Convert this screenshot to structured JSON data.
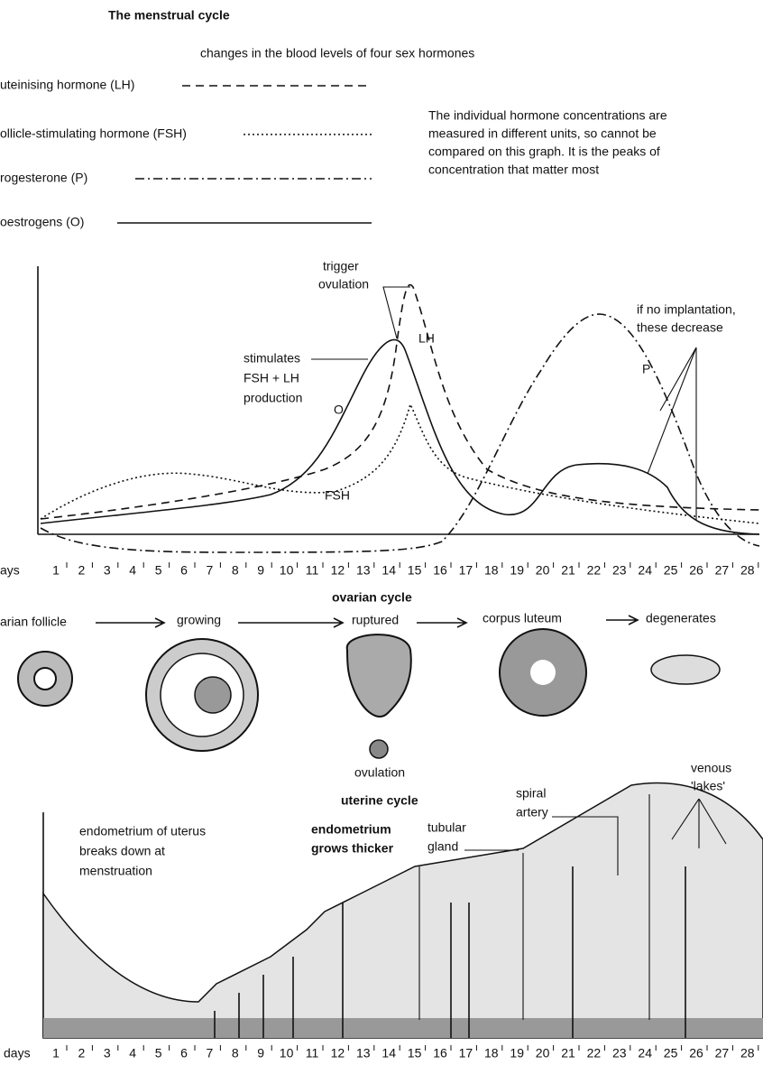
{
  "header": {
    "title": "The menstrual cycle",
    "subtitle": "changes in the blood levels of four sex hormones"
  },
  "legend": [
    {
      "label": "uteinising hormone (LH)"
    },
    {
      "label": "ollicle-stimulating hormone (FSH)"
    },
    {
      "label": "rogesterone (P)"
    },
    {
      "label": "oestrogens (O)"
    }
  ],
  "note": [
    "The individual hormone concentrations are",
    "measured in different units, so cannot be",
    "compared on this graph. It is the peaks of",
    "concentration that matter most"
  ],
  "hormone_graph": {
    "trigger": [
      "trigger",
      "ovulation"
    ],
    "stimulates": [
      "stimulates",
      "FSH + LH",
      "production"
    ],
    "curve_o": "O",
    "curve_lh": "LH",
    "curve_fsh": "FSH",
    "curve_p": "P",
    "no_implantation": [
      "if no implantation,",
      "these decrease"
    ],
    "days_label": "ays",
    "days": [
      1,
      2,
      3,
      4,
      5,
      6,
      7,
      8,
      9,
      10,
      11,
      12,
      13,
      14,
      15,
      16,
      17,
      18,
      19,
      20,
      21,
      22,
      23,
      24,
      25,
      26,
      27,
      28
    ]
  },
  "ovarian_cycle": {
    "title": "ovarian cycle",
    "stages": [
      "arian follicle",
      "growing",
      "ruptured",
      "corpus luteum",
      "degenerates"
    ],
    "ovulation": "ovulation"
  },
  "uterine_cycle": {
    "title": "uterine cycle",
    "breaks_down": [
      "endometrium of uterus",
      "breaks down at",
      "menstruation"
    ],
    "grows": [
      "endometrium",
      "grows thicker"
    ],
    "gland": [
      "tubular",
      "gland"
    ],
    "artery": [
      "spiral",
      "artery"
    ],
    "lakes": [
      "venous",
      "'lakes'"
    ],
    "days_label": "days",
    "days": [
      1,
      2,
      3,
      4,
      5,
      6,
      7,
      8,
      9,
      10,
      11,
      12,
      13,
      14,
      15,
      16,
      17,
      18,
      19,
      20,
      21,
      22,
      23,
      24,
      25,
      26,
      27,
      28
    ]
  }
}
